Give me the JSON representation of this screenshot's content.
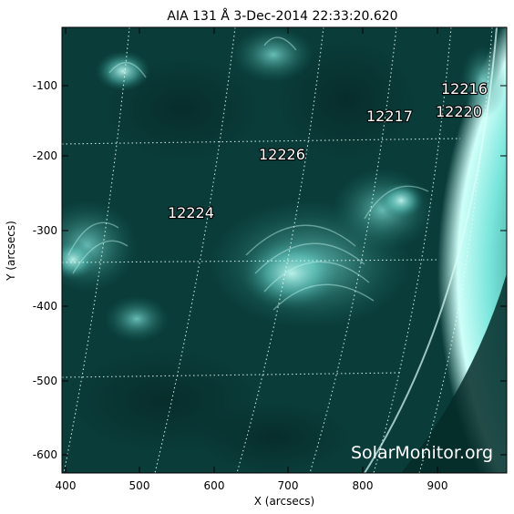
{
  "title": "AIA 131 Å   3-Dec-2014 22:33:20.620",
  "xlabel": "X (arcsecs)",
  "ylabel": "Y (arcsecs)",
  "xticks": [
    "400",
    "500",
    "600",
    "700",
    "800",
    "900"
  ],
  "yticks": [
    "-100",
    "-200",
    "-300",
    "-400",
    "-500",
    "-600"
  ],
  "regions": [
    "12216",
    "12217",
    "12220",
    "12226",
    "12224"
  ],
  "watermark": "SolarMonitor.org",
  "colors": {
    "sun_base": "#0f5c57",
    "limb": "#9ff7ef",
    "space": "#021817"
  }
}
